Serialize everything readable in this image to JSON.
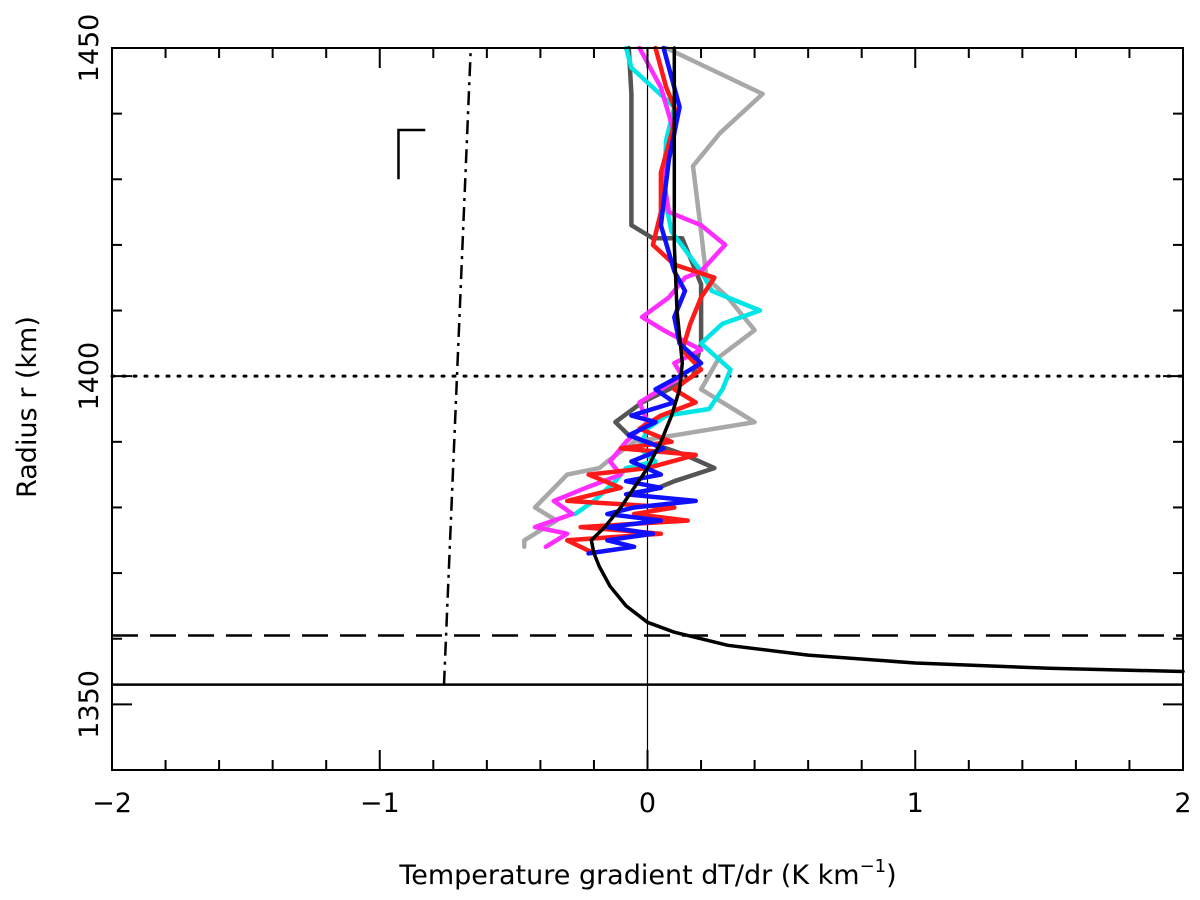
{
  "chart_data": {
    "type": "line",
    "title": "",
    "xlabel": "Temperature gradient dT/dr (K km",
    "xlabel_sup": "−1",
    "xlabel_tail": ")",
    "ylabel": "Radius r (km)",
    "xlim": [
      -2,
      2
    ],
    "ylim": [
      1340,
      1450
    ],
    "x_ticks": [
      -2,
      -1,
      0,
      1,
      2
    ],
    "x_tick_labels": [
      "−2",
      "−1",
      "0",
      "1",
      "2"
    ],
    "y_ticks": [
      1350,
      1400,
      1450
    ],
    "y_tick_labels": [
      "1350",
      "1400",
      "1450"
    ],
    "x_minor_step": 0.2,
    "y_minor_step": 10,
    "grid": false,
    "legend": "none",
    "reference_lines": [
      {
        "kind": "horizontal",
        "style": "dotted",
        "value": 1400,
        "color": "#000000"
      },
      {
        "kind": "horizontal",
        "style": "dashed",
        "value": 1360.5,
        "color": "#000000"
      },
      {
        "kind": "horizontal",
        "style": "solid",
        "value": 1353,
        "color": "#000000"
      },
      {
        "kind": "vertical",
        "style": "solid-thin",
        "value": 0,
        "color": "#000000"
      }
    ],
    "dry_adiabat": {
      "style": "dash-dot",
      "color": "#000000",
      "points": [
        [
          -0.76,
          1353
        ],
        [
          -0.66,
          1450
        ]
      ]
    },
    "error_bar_marker": {
      "x": -0.93,
      "y_top": 1437.5,
      "y_bottom": 1430,
      "x_cap_end": -0.83
    },
    "series": [
      {
        "color": "#a8a8a8",
        "points": [
          [
            0.07,
            1450
          ],
          [
            0.43,
            1443
          ],
          [
            0.27,
            1437
          ],
          [
            0.17,
            1432
          ],
          [
            0.2,
            1422
          ],
          [
            0.22,
            1415
          ],
          [
            0.3,
            1412
          ],
          [
            0.4,
            1407
          ],
          [
            0.27,
            1403
          ],
          [
            0.2,
            1398
          ],
          [
            0.4,
            1393
          ],
          [
            0.1,
            1391
          ],
          [
            -0.05,
            1390
          ],
          [
            -0.15,
            1387
          ],
          [
            -0.18,
            1386
          ],
          [
            -0.3,
            1385
          ],
          [
            -0.42,
            1380
          ],
          [
            -0.34,
            1378
          ],
          [
            -0.46,
            1375
          ],
          [
            -0.46,
            1374
          ]
        ]
      },
      {
        "color": "#555555",
        "points": [
          [
            -0.07,
            1450
          ],
          [
            -0.06,
            1443
          ],
          [
            -0.06,
            1432
          ],
          [
            -0.06,
            1423
          ],
          [
            0.02,
            1421
          ],
          [
            0.13,
            1421
          ],
          [
            0.2,
            1414
          ],
          [
            0.2,
            1405
          ],
          [
            0.17,
            1400
          ],
          [
            0.08,
            1398
          ],
          [
            -0.02,
            1396
          ],
          [
            -0.12,
            1393
          ],
          [
            -0.07,
            1391
          ],
          [
            0.07,
            1389
          ],
          [
            0.14,
            1388
          ],
          [
            0.25,
            1386
          ],
          [
            0.1,
            1384
          ],
          [
            0.04,
            1383
          ],
          [
            -0.05,
            1382
          ]
        ]
      },
      {
        "color": "#00e5e5",
        "points": [
          [
            -0.08,
            1450
          ],
          [
            -0.06,
            1447
          ],
          [
            0.1,
            1441
          ],
          [
            0.07,
            1436
          ],
          [
            0.06,
            1428
          ],
          [
            0.09,
            1422
          ],
          [
            0.2,
            1416
          ],
          [
            0.24,
            1413
          ],
          [
            0.42,
            1410
          ],
          [
            0.28,
            1408
          ],
          [
            0.2,
            1405
          ],
          [
            0.31,
            1401
          ],
          [
            0.28,
            1398
          ],
          [
            0.23,
            1395
          ],
          [
            0.07,
            1394
          ],
          [
            0.0,
            1392
          ],
          [
            -0.03,
            1389
          ],
          [
            0.03,
            1387
          ],
          [
            -0.08,
            1386
          ],
          [
            -0.12,
            1384
          ],
          [
            -0.2,
            1381
          ],
          [
            -0.27,
            1379
          ]
        ]
      },
      {
        "color": "#ff2dff",
        "points": [
          [
            -0.03,
            1450
          ],
          [
            0.05,
            1444
          ],
          [
            0.1,
            1437
          ],
          [
            0.06,
            1430
          ],
          [
            0.08,
            1425
          ],
          [
            0.2,
            1423
          ],
          [
            0.29,
            1420
          ],
          [
            0.2,
            1416
          ],
          [
            0.14,
            1415
          ],
          [
            0.08,
            1412
          ],
          [
            -0.02,
            1409
          ],
          [
            0.06,
            1407
          ],
          [
            0.2,
            1404
          ],
          [
            0.1,
            1402
          ],
          [
            0.13,
            1400
          ],
          [
            -0.03,
            1396
          ],
          [
            0.0,
            1393
          ],
          [
            -0.08,
            1390
          ],
          [
            -0.14,
            1387
          ],
          [
            -0.1,
            1385
          ],
          [
            -0.23,
            1383
          ],
          [
            -0.35,
            1381
          ],
          [
            -0.28,
            1379
          ],
          [
            -0.42,
            1377
          ],
          [
            -0.3,
            1376
          ],
          [
            -0.38,
            1374
          ]
        ]
      },
      {
        "color": "#ff1a1a",
        "points": [
          [
            0.03,
            1450
          ],
          [
            0.07,
            1444
          ],
          [
            0.11,
            1440
          ],
          [
            0.05,
            1431
          ],
          [
            0.05,
            1425
          ],
          [
            0.02,
            1420
          ],
          [
            0.1,
            1417
          ],
          [
            0.25,
            1415
          ],
          [
            0.2,
            1412
          ],
          [
            0.16,
            1408
          ],
          [
            0.13,
            1404
          ],
          [
            0.2,
            1401
          ],
          [
            0.1,
            1398
          ],
          [
            0.18,
            1396
          ],
          [
            0.05,
            1394
          ],
          [
            -0.03,
            1392
          ],
          [
            0.09,
            1390
          ],
          [
            -0.1,
            1389
          ],
          [
            0.18,
            1388
          ],
          [
            0.0,
            1386
          ],
          [
            -0.22,
            1385
          ],
          [
            -0.1,
            1383
          ],
          [
            -0.3,
            1381
          ],
          [
            0.1,
            1380
          ],
          [
            -0.05,
            1379
          ],
          [
            0.15,
            1378
          ],
          [
            -0.25,
            1377
          ],
          [
            0.05,
            1376
          ],
          [
            -0.3,
            1375
          ],
          [
            -0.2,
            1373
          ]
        ]
      },
      {
        "color": "#1010ff",
        "points": [
          [
            0.06,
            1450
          ],
          [
            0.12,
            1441
          ],
          [
            0.08,
            1433
          ],
          [
            0.05,
            1423
          ],
          [
            0.1,
            1416
          ],
          [
            0.14,
            1413
          ],
          [
            0.1,
            1409
          ],
          [
            0.12,
            1405
          ],
          [
            0.2,
            1402
          ],
          [
            0.12,
            1400
          ],
          [
            0.03,
            1398
          ],
          [
            0.1,
            1396
          ],
          [
            -0.06,
            1394
          ],
          [
            0.03,
            1393
          ],
          [
            -0.07,
            1391
          ],
          [
            0.06,
            1389
          ],
          [
            -0.06,
            1387
          ],
          [
            0.05,
            1385
          ],
          [
            -0.08,
            1384
          ],
          [
            0.05,
            1383
          ],
          [
            -0.08,
            1382
          ],
          [
            0.18,
            1381
          ],
          [
            -0.05,
            1380
          ],
          [
            -0.15,
            1379
          ],
          [
            0.05,
            1378
          ],
          [
            -0.15,
            1377
          ],
          [
            0.02,
            1376
          ],
          [
            -0.15,
            1375
          ],
          [
            -0.05,
            1374
          ],
          [
            -0.22,
            1373
          ]
        ]
      },
      {
        "color": "#000000",
        "points": [
          [
            0.1,
            1450
          ],
          [
            0.1,
            1440
          ],
          [
            0.1,
            1430
          ],
          [
            0.1,
            1420
          ],
          [
            0.11,
            1410
          ],
          [
            0.13,
            1402
          ],
          [
            0.12,
            1398
          ],
          [
            0.09,
            1394
          ],
          [
            0.05,
            1390
          ],
          [
            0.0,
            1386
          ],
          [
            -0.05,
            1383
          ],
          [
            -0.1,
            1380
          ],
          [
            -0.16,
            1377
          ],
          [
            -0.21,
            1375
          ],
          [
            -0.2,
            1373
          ],
          [
            -0.18,
            1371
          ],
          [
            -0.14,
            1368
          ],
          [
            -0.08,
            1365
          ],
          [
            0.0,
            1362.5
          ],
          [
            0.1,
            1361
          ],
          [
            0.3,
            1359
          ],
          [
            0.6,
            1357.5
          ],
          [
            1.0,
            1356.3
          ],
          [
            1.5,
            1355.5
          ],
          [
            2.0,
            1355
          ]
        ]
      }
    ]
  }
}
